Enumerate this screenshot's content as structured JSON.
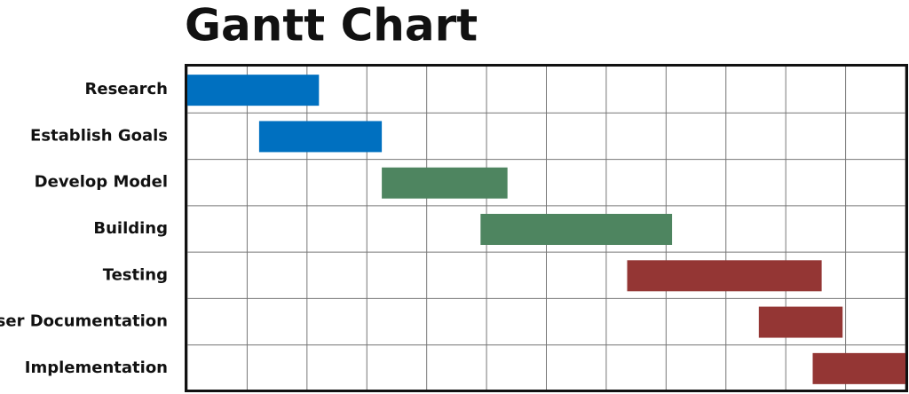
{
  "chart_data": {
    "type": "gantt",
    "title": "Gantt Chart",
    "tasks": [
      {
        "name": "Research",
        "start": 0,
        "end": 2.2,
        "color": "#0070c0"
      },
      {
        "name": "Establish Goals",
        "start": 1.2,
        "end": 3.25,
        "color": "#0070c0"
      },
      {
        "name": "Develop Model",
        "start": 3.25,
        "end": 5.35,
        "color": "#4e8560"
      },
      {
        "name": "Building",
        "start": 4.9,
        "end": 8.1,
        "color": "#4e8560"
      },
      {
        "name": "Testing",
        "start": 7.35,
        "end": 10.6,
        "color": "#943634"
      },
      {
        "name": "User Documentation",
        "start": 9.55,
        "end": 10.95,
        "color": "#943634"
      },
      {
        "name": "Implementation",
        "start": 10.45,
        "end": 12,
        "color": "#943634"
      }
    ],
    "xlim": [
      0,
      12
    ],
    "xticks": [
      0,
      1,
      2,
      3,
      4,
      5,
      6,
      7,
      8,
      9,
      10,
      11,
      12
    ],
    "grid": true
  }
}
